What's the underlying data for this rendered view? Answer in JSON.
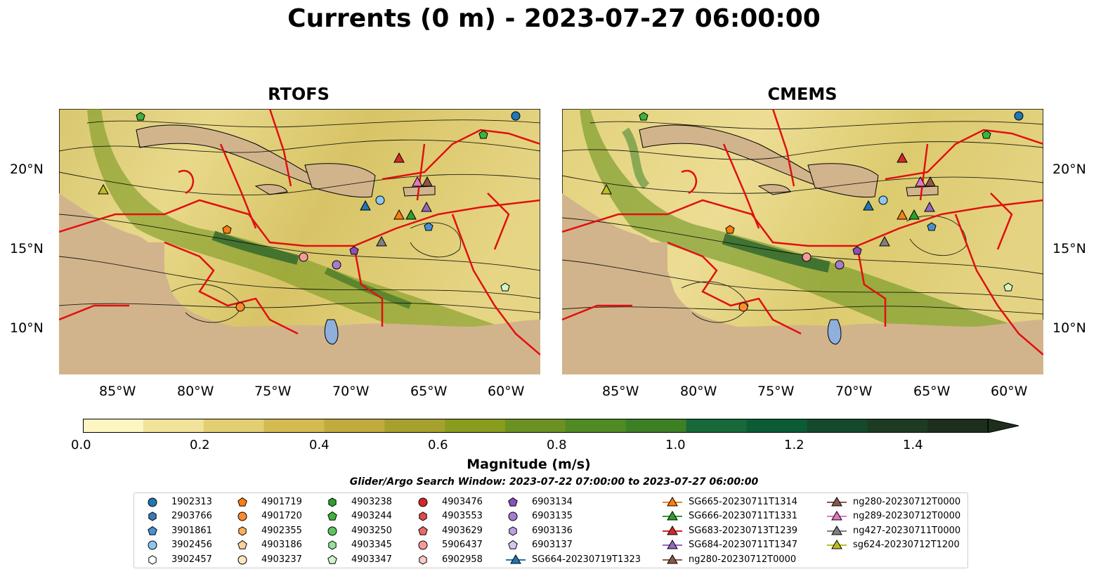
{
  "title": "Currents (0 m) - 2023-07-27 06:00:00",
  "panels": [
    {
      "title": "RTOFS"
    },
    {
      "title": "CMEMS"
    }
  ],
  "axes": {
    "lon_ticks": [
      "85°W",
      "80°W",
      "75°W",
      "70°W",
      "65°W",
      "60°W"
    ],
    "lat_ticks": [
      "20°N",
      "15°N",
      "10°N"
    ],
    "lon_range": [
      -89.5,
      -58
    ],
    "lat_range": [
      7,
      24
    ]
  },
  "colorbar": {
    "label": "Magnitude (m/s)",
    "ticks": [
      "0.0",
      "0.2",
      "0.4",
      "0.6",
      "0.8",
      "1.0",
      "1.2",
      "1.4"
    ],
    "range": [
      0,
      1.5
    ],
    "colors": [
      "#fdf6c3",
      "#f2e39a",
      "#e3cf72",
      "#d3bb52",
      "#c1ab3d",
      "#a6a12c",
      "#899c1d",
      "#6a9122",
      "#4f8a24",
      "#3c7f25",
      "#17693a",
      "#0b5c34",
      "#144a2b",
      "#1d3b23",
      "#1d2f1c"
    ]
  },
  "search_window": "Glider/Argo Search Window: 2023-07-22 07:00:00 to 2023-07-27 06:00:00",
  "legend": [
    {
      "label": "1902313",
      "marker": "circle",
      "color": "#1f77b4"
    },
    {
      "label": "2903766",
      "marker": "hexagon",
      "color": "#3a78b8"
    },
    {
      "label": "3901861",
      "marker": "pentagon",
      "color": "#4a90d0"
    },
    {
      "label": "3902456",
      "marker": "circle",
      "color": "#8ec6f0"
    },
    {
      "label": "3902457",
      "marker": "hexagon",
      "color": "#ffffff"
    },
    {
      "label": "4901719",
      "marker": "pentagon",
      "color": "#ff7f0e"
    },
    {
      "label": "4901720",
      "marker": "circle",
      "color": "#ff8c2a"
    },
    {
      "label": "4902355",
      "marker": "hexagon",
      "color": "#ffad5c"
    },
    {
      "label": "4903186",
      "marker": "pentagon",
      "color": "#ffd1a0"
    },
    {
      "label": "4903237",
      "marker": "circle",
      "color": "#ffe4c4"
    },
    {
      "label": "4903238",
      "marker": "hexagon",
      "color": "#2ca02c"
    },
    {
      "label": "4903244",
      "marker": "pentagon",
      "color": "#3cb43c"
    },
    {
      "label": "4903250",
      "marker": "circle",
      "color": "#5cc45c"
    },
    {
      "label": "4903345",
      "marker": "hexagon",
      "color": "#98e098"
    },
    {
      "label": "4903347",
      "marker": "pentagon",
      "color": "#d0f5c8"
    },
    {
      "label": "4903476",
      "marker": "circle",
      "color": "#d62728"
    },
    {
      "label": "4903553",
      "marker": "hexagon",
      "color": "#e04a4a"
    },
    {
      "label": "4903629",
      "marker": "pentagon",
      "color": "#e86a6a"
    },
    {
      "label": "5906437",
      "marker": "circle",
      "color": "#f49a9a"
    },
    {
      "label": "6902958",
      "marker": "hexagon",
      "color": "#fcc8c8"
    },
    {
      "label": "6903134",
      "marker": "pentagon",
      "color": "#8a4fb8"
    },
    {
      "label": "6903135",
      "marker": "circle",
      "color": "#a57cd0"
    },
    {
      "label": "6903136",
      "marker": "hexagon",
      "color": "#bca0de"
    },
    {
      "label": "6903137",
      "marker": "pentagon",
      "color": "#d8c4f0"
    },
    {
      "label": "SG664-20230719T1323",
      "marker": "triangle-line",
      "color": "#1f77b4"
    },
    {
      "label": "SG665-20230711T1314",
      "marker": "triangle-line",
      "color": "#ff7f0e"
    },
    {
      "label": "SG666-20230711T1331",
      "marker": "triangle-line",
      "color": "#2ca02c"
    },
    {
      "label": "SG683-20230713T1239",
      "marker": "triangle-line",
      "color": "#d62728"
    },
    {
      "label": "SG684-20230711T1347",
      "marker": "triangle-line",
      "color": "#9467bd"
    },
    {
      "label": "ng280-20230712T0000",
      "marker": "triangle-line",
      "color": "#8c564b"
    },
    {
      "label": "ng289-20230712T0000",
      "marker": "triangle-line",
      "color": "#e377c2"
    },
    {
      "label": "ng427-20230711T0000",
      "marker": "triangle-line",
      "color": "#7f7f7f"
    },
    {
      "label": "sg624-20230712T1200",
      "marker": "triangle-line",
      "color": "#bcbd22"
    }
  ]
}
